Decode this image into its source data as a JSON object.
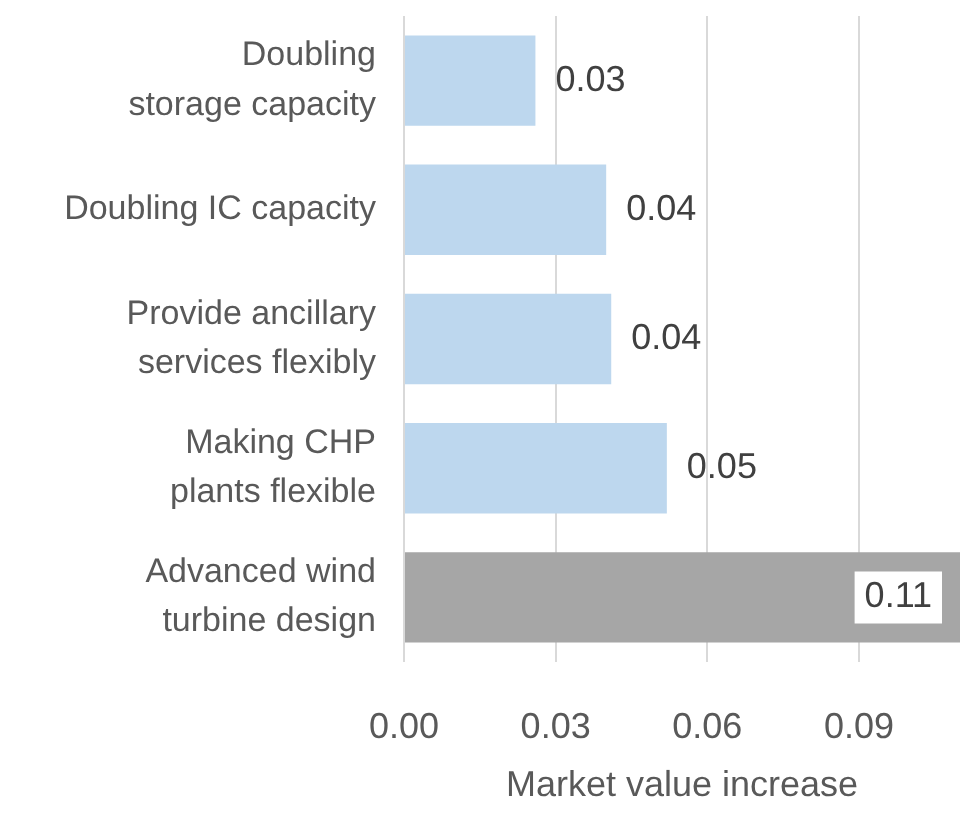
{
  "chart_data": {
    "type": "bar",
    "orientation": "horizontal",
    "xlabel": "Market value increase",
    "categories": [
      "Doubling storage capacity",
      "Doubling IC capacity",
      "Provide ancillary services flexibly",
      "Making CHP plants flexible",
      "Advanced wind turbine design"
    ],
    "values": [
      0.026,
      0.04,
      0.041,
      0.052,
      0.11
    ],
    "value_labels": [
      "0.03",
      "0.04",
      "0.04",
      "0.05",
      "0.11"
    ],
    "colors": [
      "#bdd7ee",
      "#bdd7ee",
      "#bdd7ee",
      "#bdd7ee",
      "#a6a6a6"
    ],
    "xlim": [
      0,
      0.11
    ],
    "xticks": [
      {
        "value": 0,
        "label": "0.00"
      },
      0.03,
      0.06,
      0.09
    ],
    "grid": "x"
  }
}
